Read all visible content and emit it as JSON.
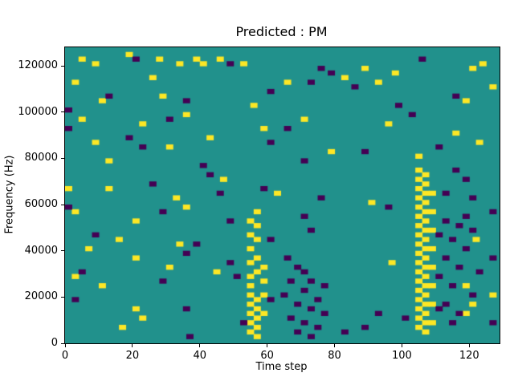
{
  "chart_data": {
    "type": "heatmap",
    "title": "Predicted : PM",
    "xlabel": "Time step",
    "ylabel": "Frequency (Hz)",
    "xlim": [
      0,
      129
    ],
    "ylim": [
      0,
      128000
    ],
    "x_ticks": [
      0,
      20,
      40,
      60,
      80,
      100,
      120
    ],
    "y_ticks": [
      0,
      20000,
      40000,
      60000,
      80000,
      100000,
      120000
    ],
    "grid": false,
    "legend": "none",
    "colors": {
      "background_mid": "#21918c",
      "high_yellow": "#fde725",
      "low_purple": "#440154"
    },
    "cell_size": {
      "time_steps": 2,
      "freq_hz": 2000
    },
    "cells": {
      "yellow": [
        [
          104,
          6000
        ],
        [
          104,
          10000
        ],
        [
          104,
          14000
        ],
        [
          104,
          18000
        ],
        [
          104,
          22000
        ],
        [
          104,
          26000
        ],
        [
          104,
          30000
        ],
        [
          104,
          34000
        ],
        [
          104,
          38000
        ],
        [
          104,
          42000
        ],
        [
          104,
          46000
        ],
        [
          104,
          50000
        ],
        [
          104,
          54000
        ],
        [
          104,
          58000
        ],
        [
          104,
          62000
        ],
        [
          104,
          66000
        ],
        [
          104,
          70000
        ],
        [
          104,
          74000
        ],
        [
          106,
          4000
        ],
        [
          106,
          8000
        ],
        [
          106,
          12000
        ],
        [
          106,
          16000
        ],
        [
          106,
          20000
        ],
        [
          106,
          24000
        ],
        [
          106,
          28000
        ],
        [
          106,
          32000
        ],
        [
          106,
          36000
        ],
        [
          106,
          40000
        ],
        [
          106,
          44000
        ],
        [
          106,
          48000
        ],
        [
          106,
          52000
        ],
        [
          106,
          56000
        ],
        [
          106,
          60000
        ],
        [
          106,
          64000
        ],
        [
          106,
          68000
        ],
        [
          106,
          72000
        ],
        [
          108,
          8000
        ],
        [
          108,
          16000
        ],
        [
          108,
          24000
        ],
        [
          108,
          32000
        ],
        [
          108,
          40000
        ],
        [
          108,
          48000
        ],
        [
          108,
          56000
        ],
        [
          108,
          64000
        ],
        [
          54,
          4000
        ],
        [
          54,
          8000
        ],
        [
          54,
          12000
        ],
        [
          54,
          16000
        ],
        [
          54,
          20000
        ],
        [
          54,
          24000
        ],
        [
          54,
          28000
        ],
        [
          54,
          34000
        ],
        [
          54,
          40000
        ],
        [
          54,
          46000
        ],
        [
          54,
          52000
        ],
        [
          56,
          2000
        ],
        [
          56,
          6000
        ],
        [
          56,
          10000
        ],
        [
          56,
          14000
        ],
        [
          56,
          18000
        ],
        [
          56,
          30000
        ],
        [
          56,
          36000
        ],
        [
          56,
          44000
        ],
        [
          56,
          50000
        ],
        [
          56,
          56000
        ],
        [
          58,
          12000
        ],
        [
          58,
          20000
        ],
        [
          58,
          26000
        ],
        [
          58,
          32000
        ],
        [
          4,
          122000
        ],
        [
          8,
          120000
        ],
        [
          18,
          124000
        ],
        [
          27,
          122000
        ],
        [
          33,
          120000
        ],
        [
          38,
          122000
        ],
        [
          40,
          120000
        ],
        [
          45,
          122000
        ],
        [
          52,
          120000
        ],
        [
          88,
          118000
        ],
        [
          97,
          116000
        ],
        [
          123,
          120000
        ],
        [
          2,
          112000
        ],
        [
          25,
          114000
        ],
        [
          65,
          112000
        ],
        [
          82,
          114000
        ],
        [
          92,
          112000
        ],
        [
          120,
          118000
        ],
        [
          126,
          110000
        ],
        [
          10,
          104000
        ],
        [
          28,
          106000
        ],
        [
          55,
          102000
        ],
        [
          118,
          104000
        ],
        [
          4,
          96000
        ],
        [
          22,
          94000
        ],
        [
          35,
          98000
        ],
        [
          58,
          92000
        ],
        [
          70,
          96000
        ],
        [
          95,
          94000
        ],
        [
          115,
          90000
        ],
        [
          8,
          86000
        ],
        [
          30,
          84000
        ],
        [
          42,
          88000
        ],
        [
          78,
          82000
        ],
        [
          104,
          80000
        ],
        [
          122,
          86000
        ],
        [
          12,
          78000
        ],
        [
          2,
          56000
        ],
        [
          12,
          66000
        ],
        [
          20,
          52000
        ],
        [
          32,
          62000
        ],
        [
          35,
          58000
        ],
        [
          15,
          44000
        ],
        [
          33,
          42000
        ],
        [
          62,
          64000
        ],
        [
          90,
          60000
        ],
        [
          121,
          44000
        ],
        [
          46,
          70000
        ],
        [
          6,
          40000
        ],
        [
          0,
          66000
        ],
        [
          10,
          24000
        ],
        [
          20,
          36000
        ],
        [
          20,
          14000
        ],
        [
          22,
          10000
        ],
        [
          30,
          32000
        ],
        [
          118,
          24000
        ],
        [
          118,
          12000
        ],
        [
          120,
          16000
        ],
        [
          126,
          20000
        ],
        [
          44,
          30000
        ],
        [
          16,
          6000
        ],
        [
          96,
          34000
        ],
        [
          2,
          28000
        ]
      ],
      "purple": [
        [
          64,
          20000
        ],
        [
          66,
          26000
        ],
        [
          66,
          10000
        ],
        [
          68,
          4000
        ],
        [
          68,
          16000
        ],
        [
          70,
          8000
        ],
        [
          70,
          22000
        ],
        [
          70,
          30000
        ],
        [
          72,
          14000
        ],
        [
          72,
          26000
        ],
        [
          74,
          6000
        ],
        [
          74,
          18000
        ],
        [
          76,
          12000
        ],
        [
          76,
          24000
        ],
        [
          68,
          32000
        ],
        [
          72,
          2000
        ],
        [
          110,
          46000
        ],
        [
          110,
          28000
        ],
        [
          112,
          52000
        ],
        [
          112,
          36000
        ],
        [
          112,
          16000
        ],
        [
          114,
          44000
        ],
        [
          114,
          24000
        ],
        [
          116,
          50000
        ],
        [
          116,
          32000
        ],
        [
          116,
          12000
        ],
        [
          118,
          40000
        ],
        [
          118,
          54000
        ],
        [
          120,
          20000
        ],
        [
          120,
          48000
        ],
        [
          122,
          30000
        ],
        [
          114,
          8000
        ],
        [
          110,
          14000
        ],
        [
          20,
          122000
        ],
        [
          48,
          120000
        ],
        [
          75,
          118000
        ],
        [
          78,
          116000
        ],
        [
          105,
          122000
        ],
        [
          72,
          112000
        ],
        [
          85,
          110000
        ],
        [
          12,
          106000
        ],
        [
          35,
          104000
        ],
        [
          60,
          108000
        ],
        [
          98,
          102000
        ],
        [
          115,
          106000
        ],
        [
          0,
          100000
        ],
        [
          30,
          96000
        ],
        [
          65,
          92000
        ],
        [
          102,
          98000
        ],
        [
          18,
          88000
        ],
        [
          22,
          84000
        ],
        [
          60,
          86000
        ],
        [
          88,
          82000
        ],
        [
          110,
          84000
        ],
        [
          0,
          92000
        ],
        [
          40,
          76000
        ],
        [
          42,
          72000
        ],
        [
          70,
          78000
        ],
        [
          115,
          74000
        ],
        [
          118,
          70000
        ],
        [
          25,
          68000
        ],
        [
          45,
          64000
        ],
        [
          58,
          66000
        ],
        [
          75,
          62000
        ],
        [
          112,
          64000
        ],
        [
          120,
          62000
        ],
        [
          28,
          56000
        ],
        [
          48,
          52000
        ],
        [
          70,
          54000
        ],
        [
          95,
          58000
        ],
        [
          8,
          46000
        ],
        [
          38,
          42000
        ],
        [
          60,
          44000
        ],
        [
          72,
          48000
        ],
        [
          35,
          38000
        ],
        [
          48,
          34000
        ],
        [
          65,
          36000
        ],
        [
          126,
          56000
        ],
        [
          0,
          58000
        ],
        [
          28,
          26000
        ],
        [
          35,
          14000
        ],
        [
          60,
          18000
        ],
        [
          88,
          6000
        ],
        [
          36,
          2000
        ],
        [
          52,
          8000
        ],
        [
          92,
          12000
        ],
        [
          100,
          10000
        ],
        [
          4,
          30000
        ],
        [
          2,
          18000
        ],
        [
          50,
          28000
        ],
        [
          126,
          36000
        ],
        [
          126,
          8000
        ],
        [
          82,
          4000
        ]
      ]
    }
  }
}
